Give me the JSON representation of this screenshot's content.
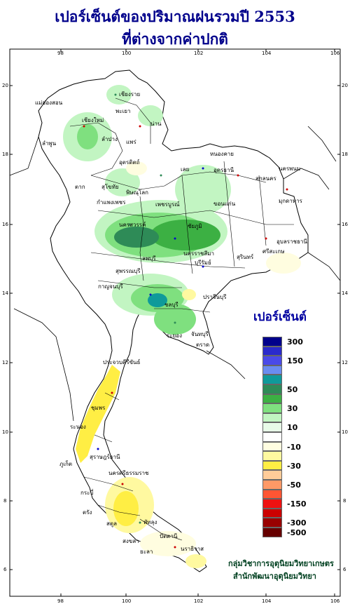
{
  "title": {
    "line1": "เปอร์เซ็นต์ของปริมาณฝนรวมปี  2553",
    "line2": "ที่ต่างจากค่าปกติ"
  },
  "axes": {
    "top_ticks": [
      "98",
      "100",
      "102",
      "104",
      "106"
    ],
    "bottom_ticks": [
      "98",
      "100",
      "102",
      "104",
      "106"
    ],
    "left_ticks": [
      "20",
      "18",
      "16",
      "14",
      "12",
      "10",
      "8",
      "6"
    ],
    "right_ticks": [
      "20",
      "18",
      "16",
      "14",
      "12",
      "10",
      "8",
      "6"
    ]
  },
  "legend": {
    "title": "เปอร์เซ็นต์",
    "items": [
      {
        "label": "300",
        "color": "#00008b"
      },
      {
        "label": "",
        "color": "#2a2acc"
      },
      {
        "label": "150",
        "color": "#4a4ae8"
      },
      {
        "label": "",
        "color": "#6a8cf0"
      },
      {
        "label": "",
        "color": "#0f9a9a"
      },
      {
        "label": "50",
        "color": "#2e8b57"
      },
      {
        "label": "",
        "color": "#3cb043"
      },
      {
        "label": "30",
        "color": "#7fe07f"
      },
      {
        "label": "",
        "color": "#c2f5c2"
      },
      {
        "label": "10",
        "color": "#e8fbe8"
      },
      {
        "label": "",
        "color": "#ffffff"
      },
      {
        "label": "-10",
        "color": "#fffde0"
      },
      {
        "label": "",
        "color": "#fff9a0"
      },
      {
        "label": "-30",
        "color": "#ffee44"
      },
      {
        "label": "",
        "color": "#ffcc99"
      },
      {
        "label": "-50",
        "color": "#ff9966"
      },
      {
        "label": "",
        "color": "#ff5533"
      },
      {
        "label": "-150",
        "color": "#ee1111"
      },
      {
        "label": "",
        "color": "#cc0000"
      },
      {
        "label": "-300",
        "color": "#990000"
      },
      {
        "label": "-500",
        "color": "#660000"
      }
    ]
  },
  "credits": {
    "line1": "กลุ่มวิชาการอุตุนิยมวิทยาเกษตร",
    "line2": "สำนักพัฒนาอุตุนิยมวิทยา"
  },
  "provinces": [
    "เชียงราย",
    "เชียงใหม่",
    "แม่ฮ่องสอน",
    "ลำพูน",
    "ลำปาง",
    "พะเยา",
    "น่าน",
    "แพร่",
    "อุตรดิตถ์",
    "ตาก",
    "สุโขทัย",
    "พิษณุโลก",
    "กำแพงเพชร",
    "เพชรบูรณ์",
    "เลย",
    "หนองคาย",
    "อุดรธานี",
    "สกลนคร",
    "นครพนม",
    "มุกดาหาร",
    "ขอนแก่น",
    "ชัยภูมิ",
    "นครสวรรค์",
    "ลพบุรี",
    "สุพรรณบุรี",
    "กาญจนบุรี",
    "นครราชสีมา",
    "บุรีรัมย์",
    "สุรินทร์",
    "ศรีสะเกษ",
    "อุบลราชธานี",
    "ปราจีนบุรี",
    "ชลบุรี",
    "ระยอง",
    "จันทบุรี",
    "ตราด",
    "ประจวบคีรีขันธ์",
    "ชุมพร",
    "ระนอง",
    "สุราษฎร์ธานี",
    "นครศรีธรรมราช",
    "ภูเก็ต",
    "กระบี่",
    "ตรัง",
    "พัทลุง",
    "สงขลา",
    "สตูล",
    "ปัตตานี",
    "ยะลา",
    "นราธิวาส"
  ]
}
